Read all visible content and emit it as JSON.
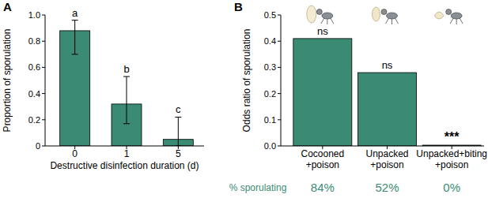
{
  "chart_data": [
    {
      "type": "bar",
      "title": "A",
      "x_label": "Destructive disinfection duration (d)",
      "y_label": "Proportion of sporulation",
      "categories": [
        "0",
        "1",
        "5"
      ],
      "values": [
        0.88,
        0.32,
        0.05
      ],
      "error_lower": [
        0.7,
        0.17,
        0.0
      ],
      "error_upper": [
        0.96,
        0.53,
        0.22
      ],
      "annotations": [
        "a",
        "b",
        "c"
      ],
      "color": "#3b8b74",
      "ylim": [
        0,
        1
      ],
      "yticks": [
        0,
        0.2,
        0.4,
        0.6,
        0.8,
        {
          "value": 1,
          "label": "1.0"
        }
      ],
      "grid": false
    },
    {
      "type": "bar",
      "title": "B",
      "y_label": "Odds ratio of sporulation",
      "categories": [
        "Cocooned\n+poison",
        "Unpacked\n+poison",
        "Unpacked+biting\n+poison"
      ],
      "values": [
        0.41,
        0.28,
        0.003
      ],
      "annotations": [
        "ns",
        "ns",
        "***"
      ],
      "percent_title": "% sporulating",
      "percent_labels": [
        "84%",
        "52%",
        "0%"
      ],
      "color": "#3b8b74",
      "ylim": [
        0,
        0.5
      ],
      "yticks": [
        {
          "value": 0,
          "label": "0.0"
        },
        0.1,
        0.2,
        0.3,
        0.4,
        0.5
      ],
      "grid": false
    }
  ]
}
